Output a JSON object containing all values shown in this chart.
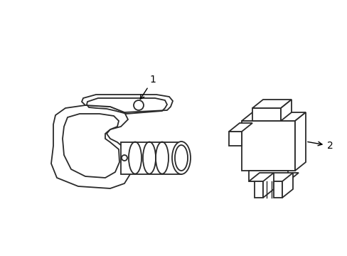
{
  "bg_color": "#ffffff",
  "line_color": "#2a2a2a",
  "label_color": "#000000",
  "lw": 1.3
}
